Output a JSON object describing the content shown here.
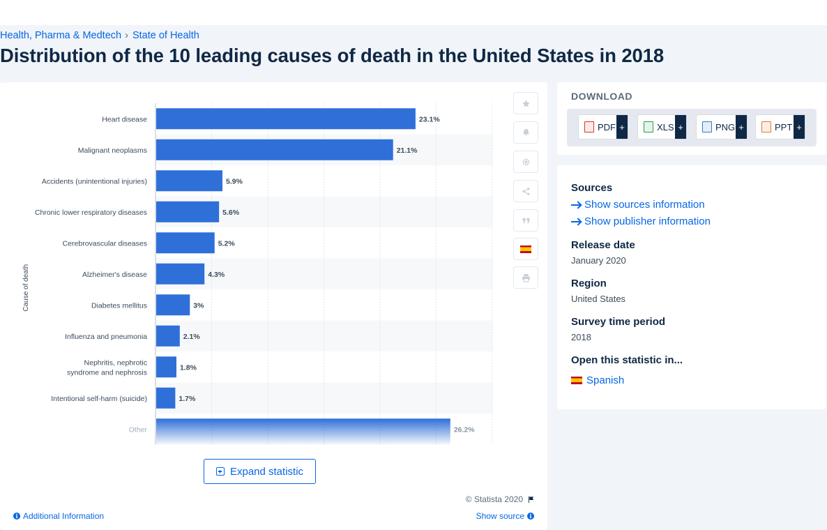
{
  "breadcrumb": {
    "items": [
      "Health, Pharma & Medtech",
      "State of Health"
    ],
    "separator": "›"
  },
  "page_title": "Distribution of the 10 leading causes of death in the United States in 2018",
  "chart_data": {
    "type": "bar",
    "orientation": "horizontal",
    "ylabel": "Cause of death",
    "categories": [
      "Heart disease",
      "Malignant neoplasms",
      "Accidents (unintentional injuries)",
      "Chronic lower respiratory diseases",
      "Cerebrovascular diseases",
      "Alzheimer's disease",
      "Diabetes mellitus",
      "Influenza and pneumonia",
      "Nephritis, nephrotic syndrome and nephrosis",
      "Intentional self-harm (suicide)",
      "Other"
    ],
    "values": [
      23.1,
      21.1,
      5.9,
      5.6,
      5.2,
      4.3,
      3,
      2.1,
      1.8,
      1.7,
      26.2
    ],
    "value_labels": [
      "23.1%",
      "21.1%",
      "5.9%",
      "5.6%",
      "5.2%",
      "4.3%",
      "3%",
      "2.1%",
      "1.8%",
      "1.7%",
      "26.2%"
    ],
    "xlim": [
      0,
      30
    ],
    "grid": true,
    "bar_color": "#2f6fd8",
    "faded_last_bar": true
  },
  "chart_card": {
    "expand_label": "Expand statistic",
    "copyright": "© Statista 2020",
    "additional_info": "Additional Information",
    "show_source": "Show source",
    "tools": [
      "star-icon",
      "bell-icon",
      "gear-icon",
      "share-icon",
      "quote-icon",
      "spain-flag-icon",
      "print-icon"
    ]
  },
  "download": {
    "heading": "DOWNLOAD",
    "formats": [
      {
        "label": "PDF",
        "color": "#d8332b"
      },
      {
        "label": "XLS",
        "color": "#2e9a48"
      },
      {
        "label": "PNG",
        "color": "#3a78c4"
      },
      {
        "label": "PPT",
        "color": "#e07a2c"
      }
    ],
    "plus": "+"
  },
  "meta": {
    "sources_heading": "Sources",
    "show_sources": "Show sources information",
    "show_publisher": "Show publisher information",
    "release_heading": "Release date",
    "release_value": "January 2020",
    "region_heading": "Region",
    "region_value": "United States",
    "period_heading": "Survey time period",
    "period_value": "2018",
    "open_heading": "Open this statistic in...",
    "open_language": "Spanish"
  },
  "colors": {
    "brand_blue": "#0666e5",
    "navy": "#0f2845",
    "bar": "#2f6fd8"
  }
}
